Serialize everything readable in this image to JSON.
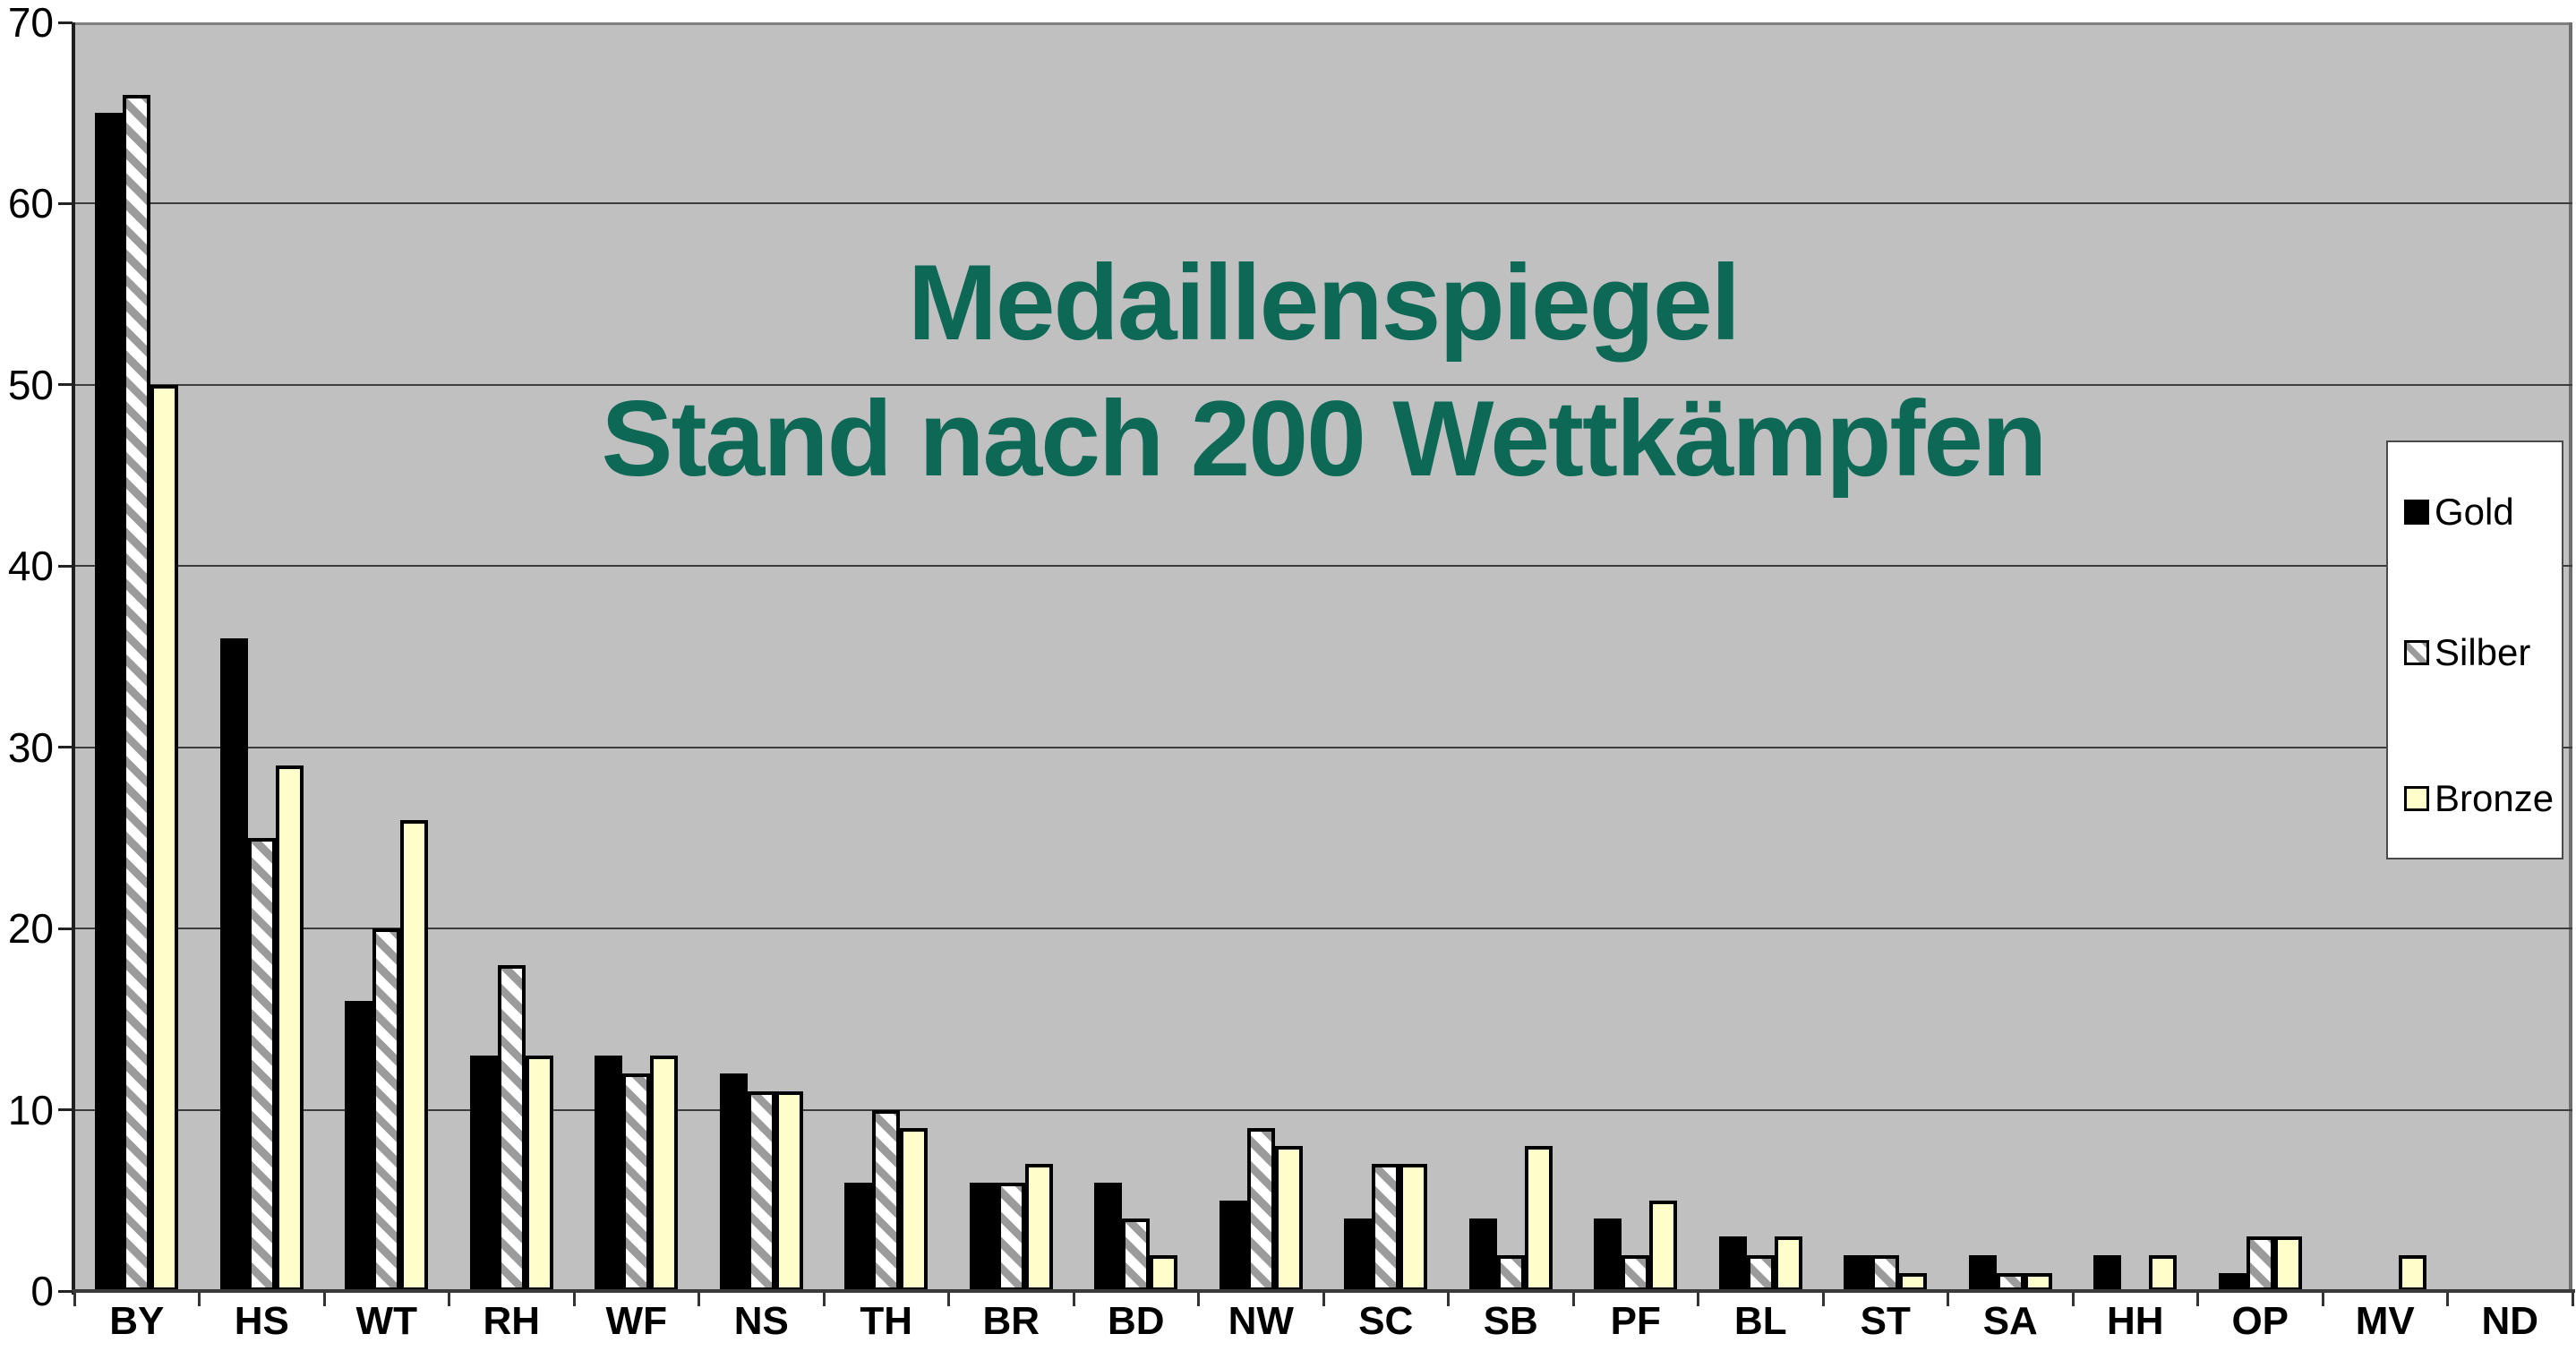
{
  "title": {
    "line1": "Medaillenspiegel",
    "line2": "Stand nach 200 Wettkämpfen",
    "color": "#0D6956"
  },
  "chart_data": {
    "type": "bar",
    "title": "Medaillenspiegel",
    "subtitle": "Stand nach 200 Wettkämpfen",
    "categories": [
      "BY",
      "HS",
      "WT",
      "RH",
      "WF",
      "NS",
      "TH",
      "BR",
      "BD",
      "NW",
      "SC",
      "SB",
      "PF",
      "BL",
      "ST",
      "SA",
      "HH",
      "OP",
      "MV",
      "ND"
    ],
    "series": [
      {
        "name": "Gold",
        "key": "gold",
        "values": [
          65,
          36,
          16,
          13,
          13,
          12,
          6,
          6,
          6,
          5,
          4,
          4,
          4,
          3,
          2,
          2,
          2,
          1,
          0,
          0
        ]
      },
      {
        "name": "Silber",
        "key": "silber",
        "values": [
          66,
          25,
          20,
          18,
          12,
          11,
          10,
          6,
          4,
          9,
          7,
          2,
          2,
          2,
          2,
          1,
          0,
          3,
          0,
          0
        ]
      },
      {
        "name": "Bronze",
        "key": "bronze",
        "values": [
          50,
          29,
          26,
          13,
          13,
          11,
          9,
          7,
          2,
          8,
          7,
          8,
          5,
          3,
          1,
          1,
          2,
          3,
          2,
          0
        ]
      }
    ],
    "ylim": [
      0,
      70
    ],
    "yticks": [
      0,
      10,
      20,
      30,
      40,
      50,
      60,
      70
    ],
    "grid": true,
    "legend_position": "right",
    "plot_bg": "#C0C0C0",
    "series_colors": {
      "gold": "#000000",
      "silber": "white-with-gray-diagonal-hatch",
      "bronze": "#FFFFCC"
    }
  },
  "legend": {
    "items": [
      {
        "label": "Gold",
        "swatch": "black-square"
      },
      {
        "label": "Silber",
        "swatch": "gray-hatched-square"
      },
      {
        "label": "Bronze",
        "swatch": "pale-yellow-square"
      }
    ]
  }
}
